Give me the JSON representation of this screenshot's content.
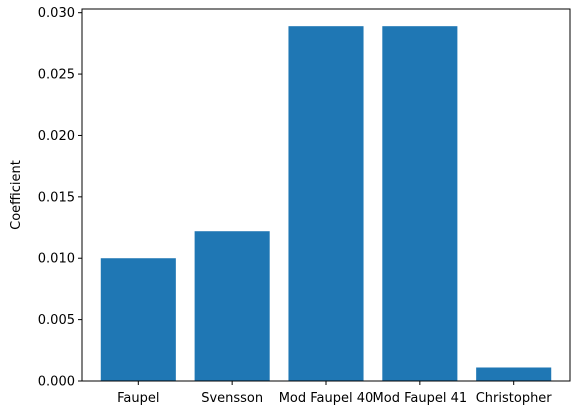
{
  "chart_data": {
    "type": "bar",
    "title": "",
    "xlabel": "",
    "ylabel": "Coefficient",
    "categories": [
      "Faupel",
      "Svensson",
      "Mod Faupel 40",
      "Mod Faupel 41",
      "Christopher"
    ],
    "values": [
      0.01,
      0.0122,
      0.0289,
      0.0289,
      0.0011
    ],
    "ylim": [
      0,
      0.0303
    ],
    "yticks": [
      0.0,
      0.005,
      0.01,
      0.015,
      0.02,
      0.025,
      0.03
    ],
    "ytick_labels": [
      "0.000",
      "0.005",
      "0.010",
      "0.015",
      "0.020",
      "0.025",
      "0.030"
    ],
    "grid": false,
    "bar_color": "#1f77b4"
  }
}
